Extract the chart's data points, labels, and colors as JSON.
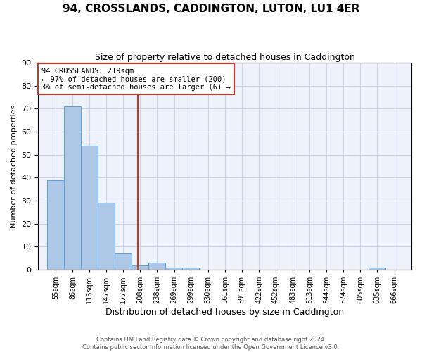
{
  "title": "94, CROSSLANDS, CADDINGTON, LUTON, LU1 4ER",
  "subtitle": "Size of property relative to detached houses in Caddington",
  "xlabel": "Distribution of detached houses by size in Caddington",
  "ylabel": "Number of detached properties",
  "bar_color": "#adc8e6",
  "bar_edge_color": "#5a9fd4",
  "bins": [
    "55sqm",
    "86sqm",
    "116sqm",
    "147sqm",
    "177sqm",
    "208sqm",
    "238sqm",
    "269sqm",
    "299sqm",
    "330sqm",
    "361sqm",
    "391sqm",
    "422sqm",
    "452sqm",
    "483sqm",
    "513sqm",
    "544sqm",
    "574sqm",
    "605sqm",
    "635sqm",
    "666sqm"
  ],
  "values": [
    39,
    71,
    54,
    29,
    7,
    2,
    3,
    1,
    1,
    0,
    0,
    0,
    0,
    0,
    0,
    0,
    0,
    0,
    0,
    1,
    0
  ],
  "bin_edges": [
    55,
    86,
    116,
    147,
    177,
    208,
    238,
    269,
    299,
    330,
    361,
    391,
    422,
    452,
    483,
    513,
    544,
    574,
    605,
    635,
    666
  ],
  "property_size": 219,
  "vline_color": "#c0392b",
  "annotation_line1": "94 CROSSLANDS: 219sqm",
  "annotation_line2": "← 97% of detached houses are smaller (200)",
  "annotation_line3": "3% of semi-detached houses are larger (6) →",
  "annotation_box_color": "#c0392b",
  "ylim": [
    0,
    90
  ],
  "yticks": [
    0,
    10,
    20,
    30,
    40,
    50,
    60,
    70,
    80,
    90
  ],
  "grid_color": "#cdd5e8",
  "background_color": "#eef2fa",
  "footer_line1": "Contains HM Land Registry data © Crown copyright and database right 2024.",
  "footer_line2": "Contains public sector information licensed under the Open Government Licence v3.0."
}
